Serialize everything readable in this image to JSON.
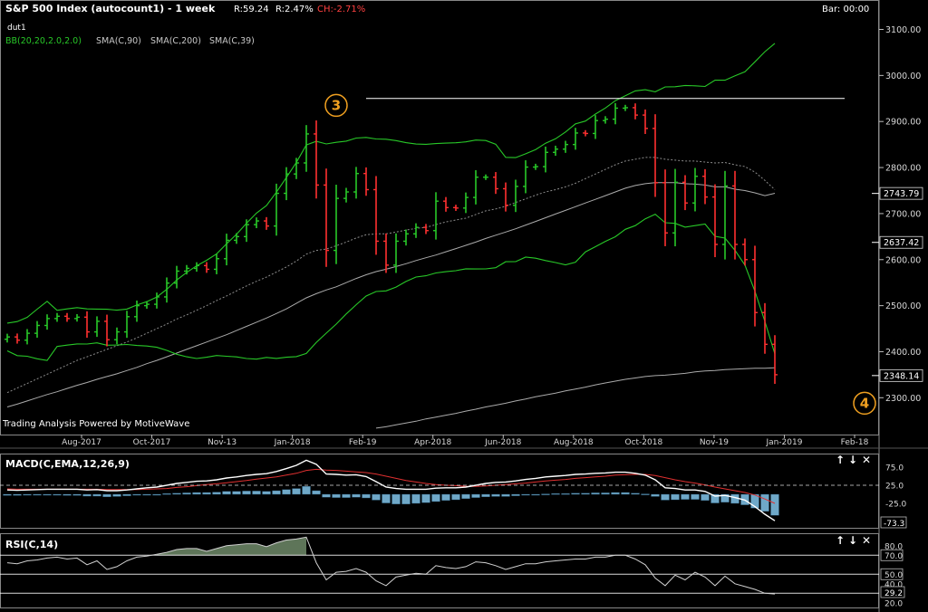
{
  "header": {
    "title": "S&P 500 Index (autocount1) - 1 week",
    "range": "R:59.24",
    "range_pct": "R:2.47%",
    "change": "CH:-2.71%",
    "bar_time": "Bar: 00:00",
    "overlay_name": "dut1"
  },
  "indicators": [
    {
      "label": "BB(20,20,2.0,2.0)",
      "color": "#28c828"
    },
    {
      "label": "SMA(C,90)",
      "color": "#c8c8c8"
    },
    {
      "label": "SMA(C,200)",
      "color": "#c8c8c8"
    },
    {
      "label": "SMA(C,39)",
      "color": "#c8c8c8"
    }
  ],
  "waves": [
    {
      "label": "3",
      "date": "2018-01-22",
      "price": 2935
    },
    {
      "label": "4",
      "date": "2019-01-28",
      "price": 2288
    }
  ],
  "watermark": "Trading Analysis Powered by MotiveWave",
  "price_panel": {
    "ylim": [
      2220,
      3160
    ],
    "ticks": [
      "3100.00",
      "3000.00",
      "2900.00",
      "2800.00",
      "2700.00",
      "2600.00",
      "2500.00",
      "2400.00",
      "2300.00"
    ],
    "markers": [
      {
        "label": "2743.79",
        "value": 2743.79
      },
      {
        "label": "2637.42",
        "value": 2637.42
      },
      {
        "label": "2348.14",
        "value": 2348.14
      }
    ],
    "resistance_line": {
      "value": 2950,
      "from": "2018-02-12",
      "to": "2019-01-14"
    }
  },
  "x_labels": [
    "Aug-2017",
    "Oct-2017",
    "Nov-13",
    "Jan-2018",
    "Feb-19",
    "Apr-2018",
    "Jun-2018",
    "Aug-2018",
    "Oct-2018",
    "Nov-19",
    "Jan-2019",
    "Feb-18"
  ],
  "macd_panel": {
    "label": "MACD(C,EMA,12,26,9)",
    "ticks": [
      "75.0",
      "25.0",
      "-25.0"
    ],
    "last_value": "-73.3",
    "controls": [
      "↑",
      "↓",
      "✕"
    ]
  },
  "rsi_panel": {
    "label": "RSI(C,14)",
    "ticks": [
      "80.0",
      "70.0",
      "50.0",
      "40.0",
      "20.0"
    ],
    "last_value": "29.2",
    "controls": [
      "↑",
      "↓",
      "✕"
    ]
  },
  "chart_data": {
    "type": "ohlc",
    "x_start": "2017-06-05",
    "x_step_days": 7,
    "closes": [
      2432,
      2425,
      2440,
      2457,
      2472,
      2477,
      2472,
      2475,
      2443,
      2466,
      2426,
      2443,
      2476,
      2500,
      2503,
      2519,
      2549,
      2575,
      2581,
      2587,
      2579,
      2602,
      2642,
      2650,
      2676,
      2684,
      2673,
      2744,
      2786,
      2810,
      2873,
      2762,
      2620,
      2733,
      2747,
      2787,
      2752,
      2640,
      2588,
      2640,
      2656,
      2670,
      2663,
      2727,
      2713,
      2712,
      2735,
      2779,
      2779,
      2754,
      2718,
      2759,
      2801,
      2802,
      2833,
      2840,
      2850,
      2875,
      2874,
      2902,
      2905,
      2929,
      2930,
      2914,
      2885,
      2767,
      2658,
      2768,
      2723,
      2781,
      2736,
      2633,
      2760,
      2633,
      2600,
      2485,
      2416,
      2350
    ],
    "moving_averages": [
      {
        "name": "SMA(C,39)",
        "values": [
          2311,
          2321,
          2331,
          2341,
          2351,
          2361,
          2371,
          2381,
          2389,
          2397,
          2405,
          2413,
          2421,
          2430,
          2440,
          2450,
          2460,
          2471,
          2480,
          2490,
          2500,
          2511,
          2521,
          2532,
          2543,
          2553,
          2562,
          2573,
          2584,
          2597,
          2612,
          2620,
          2623,
          2630,
          2638,
          2647,
          2654,
          2656,
          2656,
          2660,
          2664,
          2668,
          2670,
          2676,
          2682,
          2686,
          2690,
          2698,
          2706,
          2710,
          2716,
          2724,
          2732,
          2740,
          2747,
          2752,
          2758,
          2766,
          2776,
          2786,
          2796,
          2806,
          2814,
          2818,
          2822,
          2822,
          2818,
          2816,
          2814,
          2814,
          2812,
          2810,
          2811,
          2806,
          2802,
          2790,
          2772,
          2752
        ]
      },
      {
        "name": "SMA(C,90)",
        "values": [
          2280,
          2286,
          2293,
          2300,
          2307,
          2313,
          2320,
          2327,
          2333,
          2340,
          2346,
          2352,
          2359,
          2366,
          2374,
          2381,
          2389,
          2397,
          2405,
          2413,
          2421,
          2429,
          2437,
          2446,
          2455,
          2464,
          2473,
          2483,
          2493,
          2505,
          2517,
          2526,
          2534,
          2541,
          2550,
          2559,
          2567,
          2574,
          2579,
          2585,
          2591,
          2598,
          2604,
          2610,
          2617,
          2624,
          2631,
          2638,
          2646,
          2653,
          2660,
          2667,
          2675,
          2683,
          2691,
          2699,
          2707,
          2715,
          2723,
          2731,
          2739,
          2747,
          2755,
          2761,
          2765,
          2767,
          2767,
          2767,
          2765,
          2764,
          2762,
          2758,
          2758,
          2753,
          2750,
          2745,
          2739,
          2744
        ]
      },
      {
        "name": "SMA(C,200)",
        "values": [
          null,
          null,
          null,
          null,
          null,
          null,
          null,
          null,
          null,
          null,
          null,
          null,
          null,
          null,
          null,
          null,
          null,
          null,
          null,
          null,
          null,
          null,
          null,
          null,
          null,
          null,
          null,
          null,
          null,
          null,
          null,
          null,
          null,
          null,
          null,
          null,
          null,
          2234,
          2237,
          2241,
          2245,
          2249,
          2254,
          2258,
          2262,
          2266,
          2271,
          2275,
          2280,
          2284,
          2288,
          2293,
          2297,
          2302,
          2306,
          2310,
          2315,
          2319,
          2323,
          2328,
          2332,
          2336,
          2340,
          2343,
          2346,
          2348,
          2349,
          2351,
          2353,
          2356,
          2358,
          2359,
          2361,
          2362,
          2363,
          2364,
          2364,
          2365
        ]
      }
    ],
    "macd": {
      "hist": [
        -3,
        -3,
        -2,
        -2,
        -2,
        -2,
        -3,
        -3,
        -5,
        -5,
        -7,
        -6,
        -4,
        -2,
        -1,
        0,
        2,
        3,
        4,
        5,
        5,
        6,
        8,
        8,
        9,
        9,
        8,
        10,
        13,
        16,
        22,
        10,
        -8,
        -9,
        -9,
        -8,
        -10,
        -16,
        -24,
        -27,
        -27,
        -25,
        -23,
        -20,
        -17,
        -15,
        -12,
        -9,
        -7,
        -6,
        -6,
        -4,
        -2,
        -1,
        1,
        2,
        2,
        3,
        3,
        4,
        4,
        5,
        5,
        3,
        1,
        -6,
        -16,
        -15,
        -14,
        -14,
        -17,
        -24,
        -22,
        -25,
        -29,
        -38,
        -47,
        -58
      ],
      "line": [
        12,
        11,
        12,
        13,
        14,
        14,
        14,
        14,
        12,
        13,
        10,
        10,
        12,
        15,
        18,
        20,
        25,
        30,
        33,
        36,
        37,
        40,
        45,
        48,
        52,
        55,
        57,
        63,
        71,
        80,
        94,
        83,
        56,
        55,
        53,
        54,
        49,
        35,
        20,
        16,
        14,
        14,
        14,
        17,
        18,
        18,
        20,
        25,
        30,
        33,
        34,
        37,
        41,
        44,
        48,
        50,
        52,
        55,
        56,
        58,
        59,
        61,
        61,
        58,
        53,
        40,
        18,
        16,
        12,
        12,
        8,
        -5,
        -3,
        -9,
        -16,
        -34,
        -55,
        -73
      ],
      "signal": [
        15,
        14,
        14,
        14,
        14,
        14,
        14,
        14,
        14,
        14,
        13,
        13,
        13,
        13,
        14,
        15,
        16,
        19,
        21,
        24,
        27,
        29,
        32,
        35,
        38,
        42,
        45,
        48,
        53,
        58,
        66,
        69,
        67,
        66,
        64,
        62,
        60,
        56,
        50,
        44,
        38,
        34,
        30,
        27,
        25,
        24,
        22,
        22,
        23,
        25,
        27,
        29,
        31,
        34,
        37,
        39,
        41,
        44,
        46,
        48,
        50,
        53,
        54,
        55,
        55,
        52,
        46,
        40,
        35,
        31,
        26,
        20,
        15,
        10,
        5,
        -2,
        -13,
        -25
      ]
    },
    "rsi": [
      62,
      61,
      64,
      65,
      67,
      68,
      66,
      67,
      60,
      64,
      55,
      58,
      64,
      68,
      69,
      71,
      73,
      76,
      77,
      77,
      74,
      77,
      80,
      81,
      82,
      82,
      79,
      83,
      86,
      87,
      89,
      62,
      44,
      52,
      53,
      56,
      52,
      43,
      38,
      47,
      49,
      51,
      50,
      59,
      57,
      56,
      58,
      63,
      62,
      59,
      55,
      58,
      61,
      61,
      63,
      64,
      65,
      66,
      66,
      68,
      68,
      70,
      70,
      66,
      60,
      46,
      38,
      49,
      44,
      52,
      47,
      38,
      48,
      40,
      37,
      34,
      30,
      29.2
    ]
  }
}
